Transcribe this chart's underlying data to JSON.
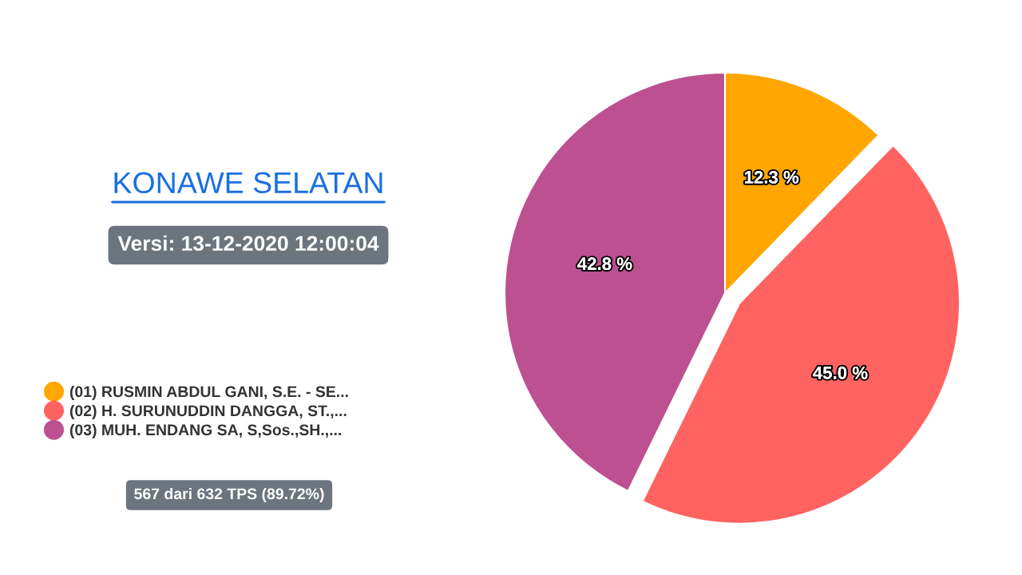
{
  "chart_data": {
    "type": "pie",
    "title": "KONAWE SELATAN",
    "subtitle": "Versi: 13-12-2020 12:00:04",
    "categories": [
      "(01) RUSMIN ABDUL GANI, S.E. - SE...",
      "(02) H. SURUNUDDIN DANGGA, ST.,...",
      "(03) MUH. ENDANG SA, S,Sos.,SH.,..."
    ],
    "values": [
      12.3,
      45.0,
      42.8
    ],
    "colors": [
      "#ffa600",
      "#ff6361",
      "#bc5090"
    ],
    "value_labels": [
      "12.3 %",
      "45.0 %",
      "42.8 %"
    ],
    "legend": "left",
    "annotations": [
      "567 dari 632 TPS (89.72%)"
    ]
  }
}
